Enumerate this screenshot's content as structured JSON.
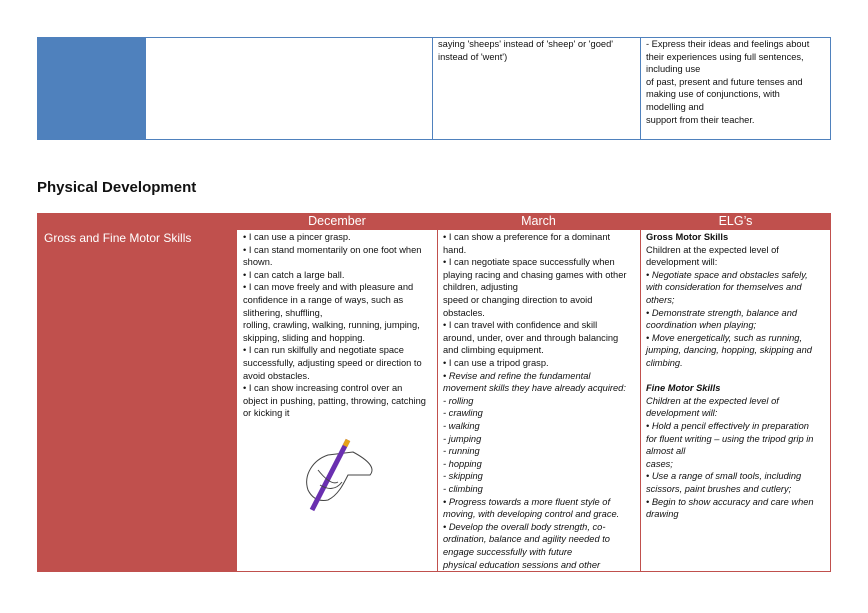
{
  "top_row": {
    "cells": [
      [
        "saying 'sheeps' instead of 'sheep' or 'goed'",
        "instead of 'went')"
      ],
      [
        "- Express their ideas and feelings about",
        "their experiences using full sentences,",
        "including use",
        "of past, present and future tenses and",
        "making use of conjunctions, with",
        "modelling and",
        "support from their teacher."
      ]
    ]
  },
  "section": {
    "title": "Physical Development",
    "table": {
      "headers": [
        "December",
        "March",
        "ELG’s"
      ],
      "row_label": "Gross and Fine Motor Skills",
      "cells": [
        [
          "• I can use a pincer grasp.",
          "• I can stand momentarily on one foot when",
          "shown.",
          "• I can catch a large ball.",
          "• I can move freely and with pleasure and",
          "confidence in a range of ways, such as",
          "slithering, shuffling,",
          "rolling, crawling, walking, running, jumping,",
          "skipping, sliding and hopping.",
          "• I can run skilfully and negotiate space",
          "successfully, adjusting speed or direction to",
          "avoid obstacles.",
          "• I can show increasing control over an",
          "object in pushing, patting, throwing, catching",
          "or kicking it"
        ],
        [
          "• I can show a preference for a dominant",
          "hand.",
          "• I can negotiate space successfully when",
          "playing racing and chasing games with other",
          "children, adjusting",
          "speed or changing direction to avoid",
          "obstacles.",
          "• I can travel with confidence and skill",
          "around, under, over and through balancing",
          "and climbing equipment.",
          "• I can use a tripod grasp.",
          "• Revise and refine the fundamental",
          "movement skills they have already acquired:",
          "- rolling",
          "- crawling",
          "- walking",
          "- jumping",
          "- running",
          "- hopping",
          "- skipping",
          "- climbing",
          "• Progress towards a more fluent style of",
          "moving, with developing control and grace.",
          "• Develop the overall body strength, co-",
          "ordination, balance and agility needed to",
          "engage successfully with future",
          "physical education sessions and other"
        ],
        [
          "Gross Motor Skills",
          "Children at the expected level of",
          "development will:",
          "• Negotiate space and obstacles safely,",
          "with consideration for themselves and",
          "others;",
          "• Demonstrate strength, balance and",
          "coordination when playing;",
          "• Move energetically, such as running,",
          "jumping, dancing, hopping, skipping and",
          "climbing.",
          "Fine Motor Skills",
          "Children at the expected level of",
          "development will:",
          "• Hold a pencil effectively in preparation",
          "for fluent writing – using the tripod grip in",
          "almost all",
          "cases;",
          "• Use a range of small tools, including",
          "scissors, paint brushes and cutlery;",
          "• Begin to show accuracy and care when",
          "drawing"
        ]
      ]
    }
  }
}
